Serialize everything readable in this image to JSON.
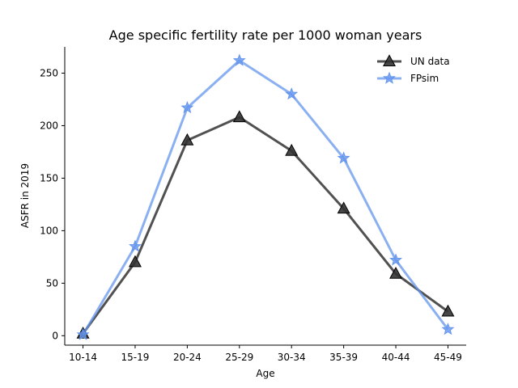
{
  "chart_data": {
    "type": "line",
    "title": "Age specific fertility rate per 1000 woman years",
    "xlabel": "Age",
    "ylabel": "ASFR in 2019",
    "categories": [
      "10-14",
      "15-19",
      "20-24",
      "25-29",
      "30-34",
      "35-39",
      "40-44",
      "45-49"
    ],
    "ylim": [
      -9,
      275
    ],
    "yticks": [
      0,
      50,
      100,
      150,
      200,
      250
    ],
    "grid": false,
    "legend_position": "top-right",
    "series": [
      {
        "name": "UN data",
        "values": [
          2,
          70,
          186,
          208,
          176,
          121,
          59,
          23
        ],
        "color": "#333333",
        "marker": "triangle-up"
      },
      {
        "name": "FPsim",
        "values": [
          1,
          85,
          217,
          262,
          230,
          169,
          72,
          6
        ],
        "color": "#6495ED",
        "marker": "star"
      }
    ]
  }
}
